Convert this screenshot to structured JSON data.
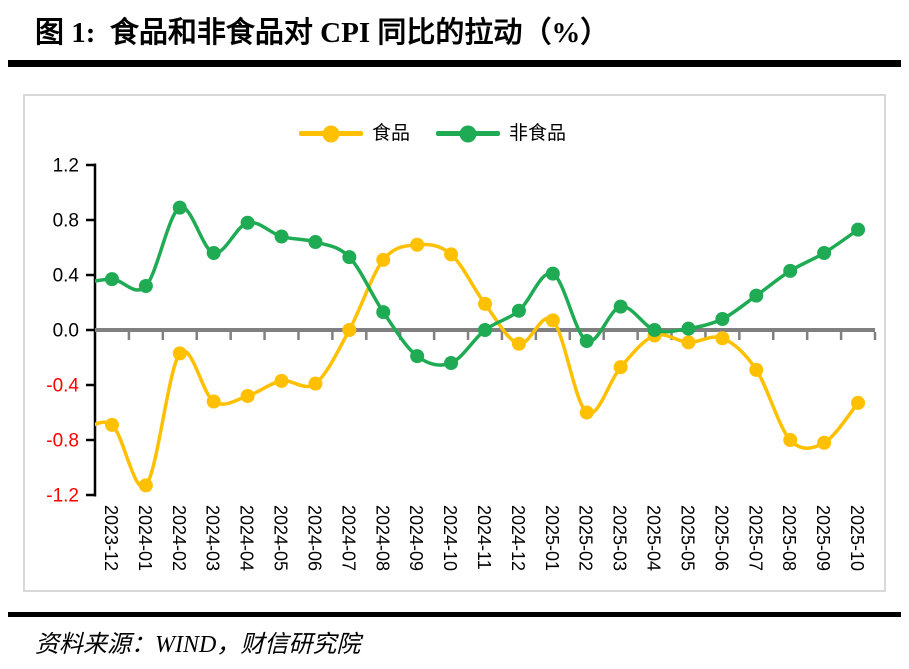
{
  "title": "图 1:  食品和非食品对 CPI 同比的拉动（%）",
  "source": "资料来源：WIND，财信研究院",
  "legend": [
    {
      "label": "食品",
      "color": "#FFC000"
    },
    {
      "label": "非食品",
      "color": "#1FAB54"
    }
  ],
  "chart_data": {
    "type": "line",
    "smooth": true,
    "title": "食品和非食品对 CPI 同比的拉动（%）",
    "categories": [
      "2023-12",
      "2024-01",
      "2024-02",
      "2024-03",
      "2024-04",
      "2024-05",
      "2024-06",
      "2024-07",
      "2024-08",
      "2024-09",
      "2024-10",
      "2024-11",
      "2024-12",
      "2025-01",
      "2025-02",
      "2025-03",
      "2025-04",
      "2025-05",
      "2025-06",
      "2025-07",
      "2025-08",
      "2025-09",
      "2025-10"
    ],
    "series": [
      {
        "name": "食品",
        "color": "#FFC000",
        "lead_in_value": -0.75,
        "values": [
          -0.69,
          -1.13,
          -0.17,
          -0.52,
          -0.48,
          -0.37,
          -0.39,
          0.0,
          0.51,
          0.62,
          0.55,
          0.19,
          -0.1,
          0.07,
          -0.6,
          -0.27,
          -0.04,
          -0.09,
          -0.06,
          -0.29,
          -0.8,
          -0.82,
          -0.53
        ]
      },
      {
        "name": "非食品",
        "color": "#1FAB54",
        "lead_in_value": 0.33,
        "values": [
          0.37,
          0.32,
          0.89,
          0.56,
          0.78,
          0.68,
          0.64,
          0.53,
          0.13,
          -0.19,
          -0.24,
          0.0,
          0.14,
          0.41,
          -0.08,
          0.17,
          0.0,
          0.01,
          0.08,
          0.25,
          0.43,
          0.56,
          0.73
        ]
      }
    ],
    "ylim": [
      -1.2,
      1.2
    ],
    "yticks": [
      1.2,
      0.8,
      0.4,
      0.0,
      -0.4,
      -0.8,
      -1.2
    ],
    "ytick_color_positive": "#000000",
    "ytick_color_negative": "#FF0000",
    "axis_color": "#000000",
    "zero_line_color": "#808080",
    "grid": false,
    "legend_position": "top-center",
    "x_label_rotation_deg": 90
  }
}
